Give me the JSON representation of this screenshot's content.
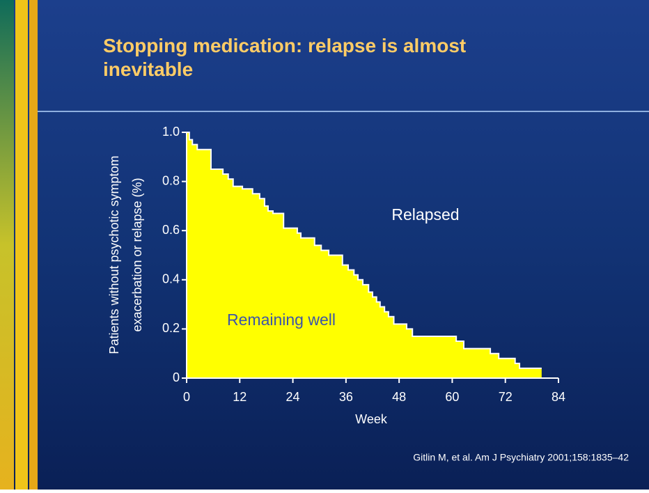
{
  "title": "Stopping medication: relapse is almost inevitable",
  "source": "Gitlin M, et al. Am J Psychiatry 2001;158:1835–42",
  "chart_data": {
    "type": "step-area",
    "x_label": "Week",
    "y_label": [
      "Patients without psychotic symptom",
      "exacerbation or relapse (%)"
    ],
    "annotations": [
      "Relapsed",
      "Remaining well"
    ],
    "color": "#ffff00",
    "x": [
      0,
      0.6,
      1.3,
      2.4,
      5.5,
      8.2,
      9.4,
      10.5,
      12.6,
      14.9,
      16.5,
      17.6,
      18.4,
      19.5,
      21.9,
      25,
      25.8,
      28.9,
      30.4,
      32.1,
      35.2,
      36.5,
      37.8,
      38.7,
      39.8,
      41.1,
      42,
      42.9,
      43.7,
      44.7,
      45.6,
      46.8,
      49.7,
      51,
      60.9,
      62.6,
      68.6,
      70.5,
      74.2,
      75.2,
      80.2
    ],
    "values": [
      1,
      0.97,
      0.95,
      0.93,
      0.85,
      0.83,
      0.81,
      0.78,
      0.77,
      0.75,
      0.73,
      0.7,
      0.68,
      0.67,
      0.61,
      0.59,
      0.57,
      0.54,
      0.52,
      0.5,
      0.46,
      0.44,
      0.42,
      0.4,
      0.38,
      0.35,
      0.33,
      0.31,
      0.29,
      0.27,
      0.25,
      0.22,
      0.2,
      0.17,
      0.15,
      0.12,
      0.1,
      0.08,
      0.06,
      0.04,
      0.04
    ],
    "xlim": [
      0,
      84
    ],
    "xticks": [
      0,
      12,
      24,
      36,
      48,
      60,
      72,
      84
    ],
    "ylim": [
      0,
      1
    ],
    "yticks": [
      0,
      0.2,
      0.4,
      0.6,
      0.8,
      {
        "value": 1,
        "label": "1.0"
      }
    ]
  }
}
